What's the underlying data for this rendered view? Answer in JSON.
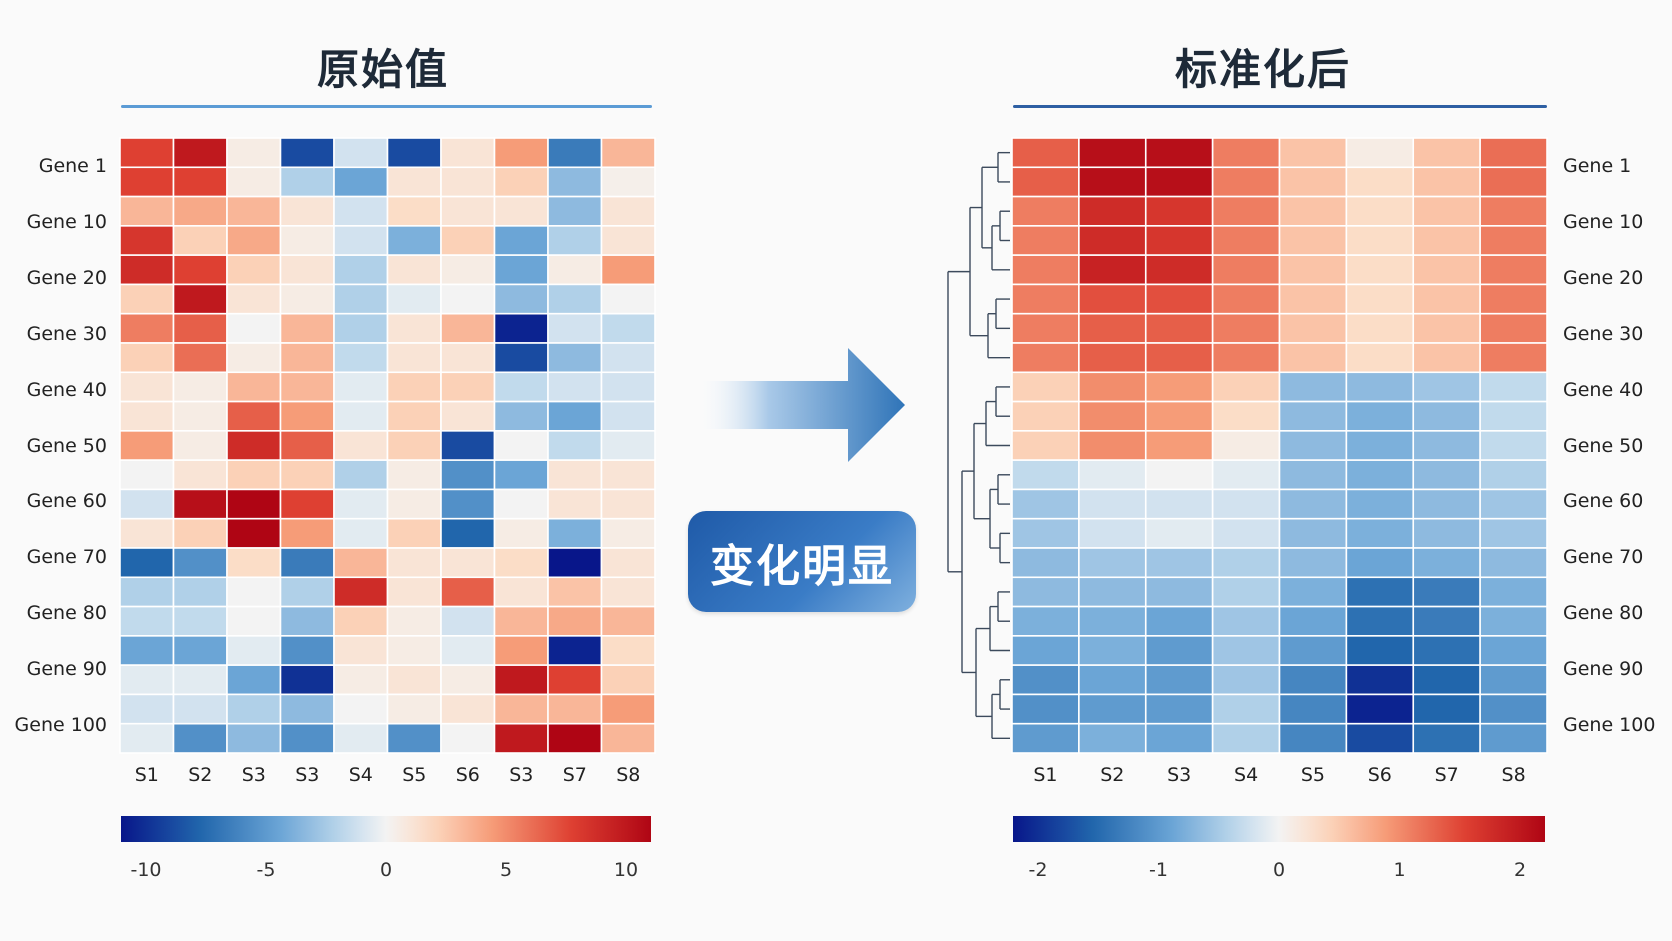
{
  "left_panel": {
    "title": "原始值"
  },
  "right_panel": {
    "title": "标准化后"
  },
  "badge": {
    "label": "变化明显"
  },
  "colors": {
    "low": "#08168a",
    "mid": "#f4f4f4",
    "high": "#b40514",
    "left_rule": "#5b9bd5",
    "right_rule": "#2e5fa3",
    "arrow": "#2f74b8",
    "tree": "#3c4a5c"
  },
  "chart_data": [
    {
      "type": "heatmap",
      "title": "原始值",
      "rows": 21,
      "y_tick_labels": [
        "Gene 1",
        "Gene 10",
        "Gene 20",
        "Gene 30",
        "Gene 40",
        "Gene 50",
        "Gene 60",
        "Gene 70",
        "Gene 80",
        "Gene 90",
        "Gene 100"
      ],
      "x_tick_labels": [
        "S1",
        "S2",
        "S3",
        "S3",
        "S4",
        "S5",
        "S6",
        "S3",
        "S7",
        "S8"
      ],
      "colorbar": {
        "range": [
          -10,
          10
        ],
        "ticks": [
          -10,
          -5,
          0,
          5,
          10
        ]
      },
      "values": [
        [
          7,
          9,
          0.5,
          -8,
          -1,
          -8,
          1,
          4,
          -6,
          3
        ],
        [
          7,
          7,
          0.5,
          -2,
          -4,
          1,
          1,
          2,
          -3,
          0.3
        ],
        [
          3,
          3.5,
          3,
          1,
          -1,
          1.5,
          1,
          1,
          -3,
          1
        ],
        [
          7.5,
          2,
          3.5,
          0.5,
          -1,
          -3.5,
          2,
          -4,
          -2,
          1
        ],
        [
          8,
          7,
          2,
          1,
          -2,
          1,
          0.5,
          -4,
          0.5,
          4
        ],
        [
          2,
          9,
          1,
          0.5,
          -2,
          -0.5,
          0,
          -3,
          -2,
          0
        ],
        [
          5,
          6,
          0,
          3,
          -2,
          1,
          3,
          -9.5,
          -1,
          -1.5
        ],
        [
          2,
          5.5,
          0.5,
          3,
          -1.5,
          1,
          1,
          -8,
          -3,
          -1
        ],
        [
          1,
          0.5,
          3,
          3,
          -0.5,
          2,
          2,
          -1.5,
          -1,
          -1
        ],
        [
          1,
          0.5,
          6,
          4,
          -0.5,
          2,
          1,
          -3,
          -4,
          -1
        ],
        [
          4,
          0.5,
          8,
          6,
          1,
          2,
          -8,
          0,
          -1.5,
          -0.5
        ],
        [
          0,
          1,
          2,
          2,
          -2,
          0.5,
          -5,
          -4,
          1,
          1
        ],
        [
          -1,
          9.5,
          10,
          7,
          -0.5,
          0.5,
          -5,
          0,
          1,
          1
        ],
        [
          1,
          2,
          10,
          4,
          -0.5,
          2,
          -7,
          0.5,
          -3.5,
          0.5
        ],
        [
          -7,
          -5,
          1.5,
          -6,
          3,
          1,
          1,
          1.5,
          -10,
          1
        ],
        [
          -2,
          -2,
          0,
          -2,
          8,
          1,
          6,
          1,
          2.5,
          1
        ],
        [
          -1.5,
          -1.5,
          0,
          -3,
          2,
          0.5,
          -1,
          3,
          3.5,
          3
        ],
        [
          -4,
          -4,
          -0.5,
          -5,
          1,
          0.5,
          -0.5,
          4,
          -9.5,
          1.5
        ],
        [
          -0.5,
          -0.5,
          -4,
          -9,
          0.5,
          1,
          0.5,
          9,
          7,
          2
        ],
        [
          -1,
          -1,
          -2,
          -3,
          0,
          0.5,
          1,
          3,
          3,
          4
        ],
        [
          -0.5,
          -5,
          -3,
          -5,
          -0.5,
          -5,
          0,
          9,
          10,
          3
        ]
      ]
    },
    {
      "type": "heatmap",
      "title": "标准化后",
      "rows": 21,
      "y_tick_labels": [
        "Gene 1",
        "Gene 10",
        "Gene 20",
        "Gene 30",
        "Gene 40",
        "Gene 50",
        "Gene 60",
        "Gene 70",
        "Gene 80",
        "Gene 90",
        "Gene 100"
      ],
      "x_tick_labels": [
        "S1",
        "S2",
        "S3",
        "S4",
        "S5",
        "S6",
        "S7",
        "S8"
      ],
      "colorbar": {
        "range": [
          -2,
          2
        ],
        "ticks": [
          -2,
          -1,
          0,
          1,
          2
        ]
      },
      "dendrogram": "left",
      "values": [
        [
          1.2,
          1.9,
          1.9,
          1.0,
          0.5,
          0.1,
          0.5,
          1.1
        ],
        [
          1.2,
          1.9,
          1.9,
          1.0,
          0.5,
          0.3,
          0.5,
          1.1
        ],
        [
          1.0,
          1.6,
          1.5,
          1.0,
          0.5,
          0.3,
          0.5,
          1.0
        ],
        [
          1.0,
          1.6,
          1.5,
          1.0,
          0.5,
          0.3,
          0.5,
          1.0
        ],
        [
          1.0,
          1.7,
          1.6,
          1.0,
          0.5,
          0.3,
          0.5,
          1.0
        ],
        [
          1.0,
          1.3,
          1.3,
          1.0,
          0.5,
          0.3,
          0.5,
          1.0
        ],
        [
          1.0,
          1.2,
          1.2,
          1.0,
          0.5,
          0.3,
          0.5,
          1.0
        ],
        [
          1.0,
          1.2,
          1.2,
          1.0,
          0.5,
          0.3,
          0.5,
          1.0
        ],
        [
          0.4,
          0.9,
          0.8,
          0.4,
          -0.6,
          -0.6,
          -0.5,
          -0.3
        ],
        [
          0.4,
          0.9,
          0.8,
          0.3,
          -0.6,
          -0.7,
          -0.6,
          -0.3
        ],
        [
          0.4,
          0.9,
          0.8,
          0.1,
          -0.6,
          -0.7,
          -0.6,
          -0.3
        ],
        [
          -0.3,
          -0.1,
          0.0,
          -0.1,
          -0.6,
          -0.7,
          -0.6,
          -0.4
        ],
        [
          -0.5,
          -0.2,
          -0.2,
          -0.2,
          -0.6,
          -0.7,
          -0.6,
          -0.5
        ],
        [
          -0.5,
          -0.2,
          -0.1,
          -0.2,
          -0.6,
          -0.7,
          -0.6,
          -0.5
        ],
        [
          -0.6,
          -0.5,
          -0.5,
          -0.4,
          -0.6,
          -0.8,
          -0.7,
          -0.6
        ],
        [
          -0.6,
          -0.6,
          -0.6,
          -0.4,
          -0.7,
          -1.3,
          -1.2,
          -0.7
        ],
        [
          -0.7,
          -0.7,
          -0.8,
          -0.5,
          -0.8,
          -1.3,
          -1.2,
          -0.7
        ],
        [
          -0.8,
          -0.7,
          -0.9,
          -0.5,
          -0.9,
          -1.4,
          -1.3,
          -0.8
        ],
        [
          -1.0,
          -0.8,
          -0.9,
          -0.5,
          -1.1,
          -1.8,
          -1.4,
          -0.9
        ],
        [
          -1.0,
          -0.9,
          -0.9,
          -0.4,
          -1.1,
          -1.9,
          -1.4,
          -1.0
        ],
        [
          -0.9,
          -0.7,
          -0.8,
          -0.4,
          -1.1,
          -1.6,
          -1.3,
          -0.9
        ]
      ]
    }
  ]
}
